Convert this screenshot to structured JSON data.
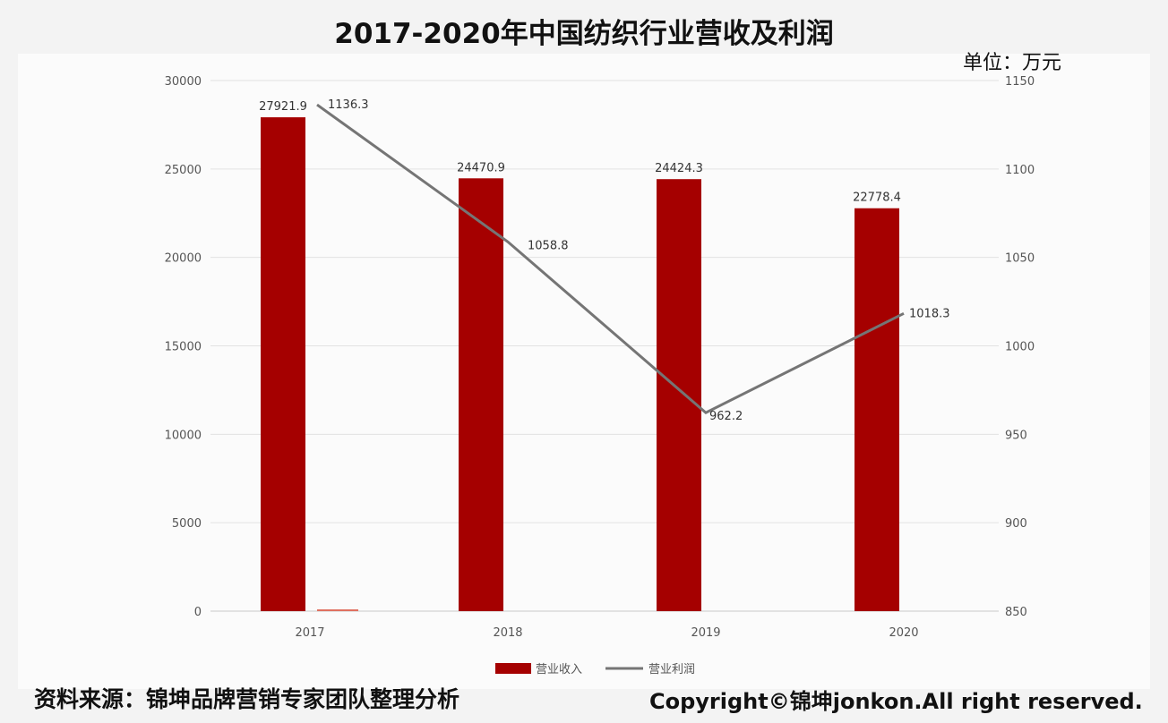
{
  "chart_data": {
    "type": "bar",
    "title": "2017-2020年中国纺织行业营收及利润",
    "unit_label": "单位：万元",
    "categories": [
      "2017",
      "2018",
      "2019",
      "2020"
    ],
    "series": [
      {
        "name": "营业收入",
        "type": "bar",
        "axis": "left",
        "color": "#a50000",
        "values": [
          27921.9,
          24470.9,
          24424.3,
          22778.4
        ],
        "labels": [
          "27921.9",
          "24470.9",
          "24424.3",
          "22778.4"
        ]
      },
      {
        "name": "营业利润",
        "type": "line",
        "axis": "right",
        "color": "#757575",
        "values": [
          1136.3,
          1058.8,
          962.2,
          1018.3
        ],
        "labels": [
          "1136.3",
          "1058.8",
          "962.2",
          "1018.3"
        ]
      }
    ],
    "y_left": {
      "range": [
        0,
        30000
      ],
      "ticks": [
        "0",
        "5000",
        "10000",
        "15000",
        "20000",
        "25000",
        "30000"
      ]
    },
    "y_right": {
      "range": [
        850,
        1150
      ],
      "ticks": [
        "850",
        "900",
        "950",
        "1000",
        "1050",
        "1100",
        "1150"
      ]
    },
    "grid": true,
    "legend": "bottom"
  },
  "footer": {
    "source": "资料来源：锦坤品牌营销专家团队整理分析",
    "copyright": "Copyright©锦坤jonkon.All right reserved."
  }
}
